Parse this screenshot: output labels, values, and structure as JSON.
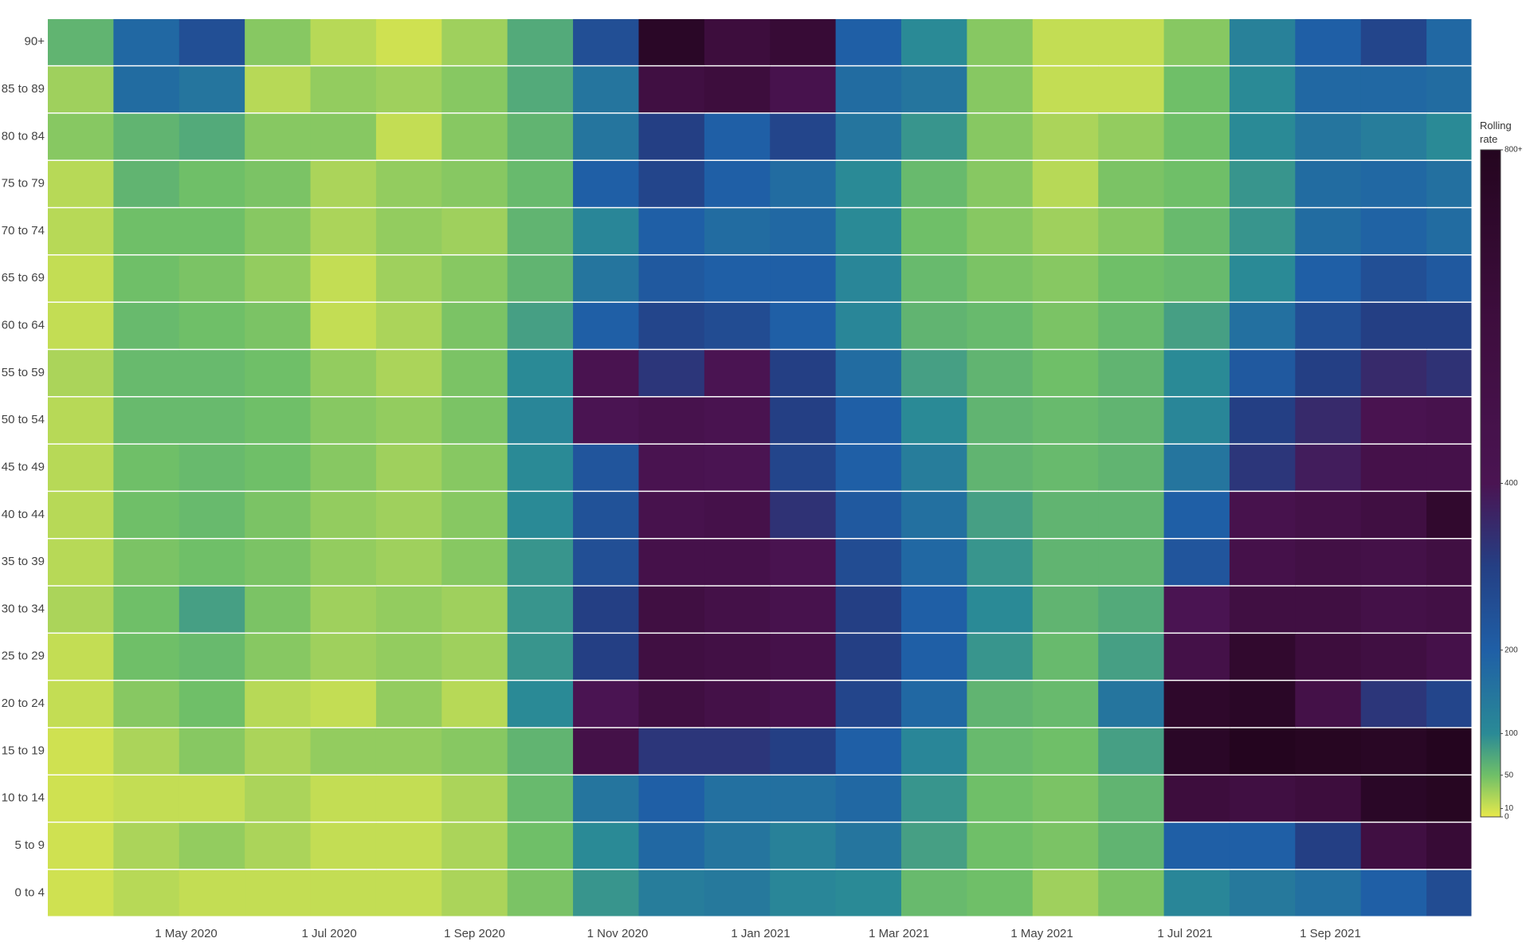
{
  "chart_data": {
    "type": "heatmap",
    "x": [
      "2020-03-17",
      "2020-04-14",
      "2020-05-12",
      "2020-06-09",
      "2020-07-07",
      "2020-08-04",
      "2020-09-01",
      "2020-09-29",
      "2020-10-27",
      "2020-11-24",
      "2020-12-22",
      "2021-01-19",
      "2021-02-16",
      "2021-03-16",
      "2021-04-13",
      "2021-05-11",
      "2021-06-08",
      "2021-07-06",
      "2021-08-03",
      "2021-08-31",
      "2021-09-28",
      "2021-10-26"
    ],
    "y": [
      "0 to 4",
      "5 to 9",
      "10 to 14",
      "15 to 19",
      "20 to 24",
      "25 to 29",
      "30 to 34",
      "35 to 39",
      "40 to 44",
      "45 to 49",
      "50 to 54",
      "55 to 59",
      "60 to 64",
      "65 to 69",
      "70 to 74",
      "75 to 79",
      "80 to 84",
      "85 to 89",
      "90+"
    ],
    "z": [
      [
        10,
        20,
        15,
        15,
        15,
        15,
        25,
        45,
        90,
        130,
        140,
        110,
        100,
        55,
        50,
        30,
        45,
        110,
        140,
        160,
        200,
        260
      ],
      [
        10,
        25,
        35,
        25,
        15,
        15,
        25,
        50,
        100,
        180,
        150,
        120,
        150,
        80,
        50,
        45,
        60,
        200,
        200,
        300,
        550,
        650
      ],
      [
        10,
        15,
        15,
        25,
        15,
        15,
        25,
        55,
        150,
        200,
        160,
        160,
        180,
        90,
        50,
        45,
        60,
        600,
        550,
        600,
        750,
        780
      ],
      [
        10,
        25,
        40,
        25,
        35,
        35,
        40,
        60,
        500,
        320,
        320,
        300,
        200,
        110,
        55,
        50,
        80,
        750,
        800,
        780,
        760,
        800
      ],
      [
        15,
        40,
        50,
        20,
        15,
        35,
        20,
        100,
        400,
        550,
        500,
        450,
        280,
        180,
        60,
        55,
        150,
        720,
        750,
        500,
        320,
        280
      ],
      [
        15,
        50,
        55,
        40,
        30,
        35,
        30,
        90,
        300,
        550,
        520,
        480,
        300,
        200,
        90,
        55,
        80,
        500,
        700,
        600,
        550,
        480
      ],
      [
        25,
        50,
        80,
        45,
        30,
        35,
        30,
        90,
        300,
        550,
        500,
        450,
        300,
        200,
        100,
        60,
        70,
        400,
        550,
        550,
        500,
        520
      ],
      [
        20,
        45,
        50,
        45,
        35,
        30,
        40,
        90,
        250,
        480,
        480,
        420,
        260,
        180,
        90,
        60,
        60,
        230,
        480,
        520,
        500,
        550
      ],
      [
        20,
        50,
        55,
        45,
        35,
        30,
        40,
        100,
        240,
        450,
        480,
        330,
        220,
        160,
        80,
        60,
        60,
        200,
        450,
        500,
        550,
        700
      ],
      [
        20,
        50,
        55,
        50,
        40,
        30,
        40,
        100,
        230,
        420,
        400,
        280,
        200,
        130,
        60,
        55,
        60,
        150,
        320,
        380,
        480,
        480
      ],
      [
        20,
        55,
        55,
        50,
        40,
        35,
        45,
        110,
        400,
        450,
        420,
        300,
        200,
        100,
        60,
        55,
        60,
        110,
        300,
        350,
        420,
        450
      ],
      [
        25,
        55,
        55,
        50,
        35,
        25,
        45,
        100,
        420,
        320,
        400,
        300,
        170,
        80,
        60,
        50,
        60,
        100,
        220,
        300,
        350,
        330
      ],
      [
        15,
        55,
        50,
        45,
        15,
        25,
        45,
        80,
        200,
        280,
        260,
        200,
        110,
        60,
        55,
        45,
        55,
        80,
        160,
        250,
        300,
        300
      ],
      [
        15,
        50,
        45,
        35,
        15,
        30,
        40,
        60,
        150,
        220,
        200,
        200,
        110,
        55,
        45,
        40,
        50,
        55,
        100,
        200,
        250,
        220
      ],
      [
        20,
        50,
        50,
        40,
        25,
        35,
        30,
        60,
        110,
        200,
        170,
        180,
        100,
        50,
        40,
        30,
        40,
        55,
        90,
        170,
        190,
        170
      ],
      [
        20,
        60,
        50,
        45,
        25,
        35,
        40,
        55,
        200,
        280,
        200,
        170,
        100,
        55,
        40,
        20,
        45,
        50,
        90,
        170,
        180,
        160
      ],
      [
        40,
        60,
        70,
        40,
        40,
        15,
        40,
        60,
        150,
        300,
        200,
        280,
        150,
        90,
        40,
        25,
        35,
        50,
        100,
        150,
        130,
        100
      ],
      [
        30,
        170,
        150,
        20,
        35,
        30,
        40,
        70,
        150,
        550,
        600,
        450,
        170,
        150,
        40,
        15,
        15,
        50,
        100,
        180,
        180,
        170
      ],
      [
        60,
        180,
        250,
        40,
        20,
        10,
        30,
        70,
        250,
        750,
        600,
        650,
        200,
        100,
        40,
        15,
        15,
        40,
        120,
        200,
        280,
        180
      ]
    ],
    "xlim": [
      "2020-03-03",
      "2021-10-31"
    ],
    "xticks": [
      {
        "value": "2020-05-01",
        "label": "1 May 2020"
      },
      {
        "value": "2020-07-01",
        "label": "1 Jul 2020"
      },
      {
        "value": "2020-09-01",
        "label": "1 Sep 2020"
      },
      {
        "value": "2020-11-01",
        "label": "1 Nov 2020"
      },
      {
        "value": "2021-01-01",
        "label": "1 Jan 2021"
      },
      {
        "value": "2021-03-01",
        "label": "1 Mar 2021"
      },
      {
        "value": "2021-05-01",
        "label": "1 May 2021"
      },
      {
        "value": "2021-07-01",
        "label": "1 Jul 2021"
      },
      {
        "value": "2021-09-01",
        "label": "1 Sep 2021"
      }
    ],
    "zlim": [
      0,
      800
    ],
    "colorscale": [
      {
        "value": 0,
        "color": "#e9e84b"
      },
      {
        "value": 10,
        "color": "#cfe151"
      },
      {
        "value": 50,
        "color": "#6fbf68"
      },
      {
        "value": 100,
        "color": "#2a8a96"
      },
      {
        "value": 200,
        "color": "#1f5fa6"
      },
      {
        "value": 300,
        "color": "#243f84"
      },
      {
        "value": 400,
        "color": "#4a1452"
      },
      {
        "value": 600,
        "color": "#3d0d3d"
      },
      {
        "value": 800,
        "color": "#24051f"
      }
    ],
    "colorbar": {
      "title": "Rolling rate",
      "ticks": [
        0,
        10,
        50,
        100,
        200,
        400,
        {
          "value": 800,
          "label": "800+"
        }
      ]
    }
  }
}
